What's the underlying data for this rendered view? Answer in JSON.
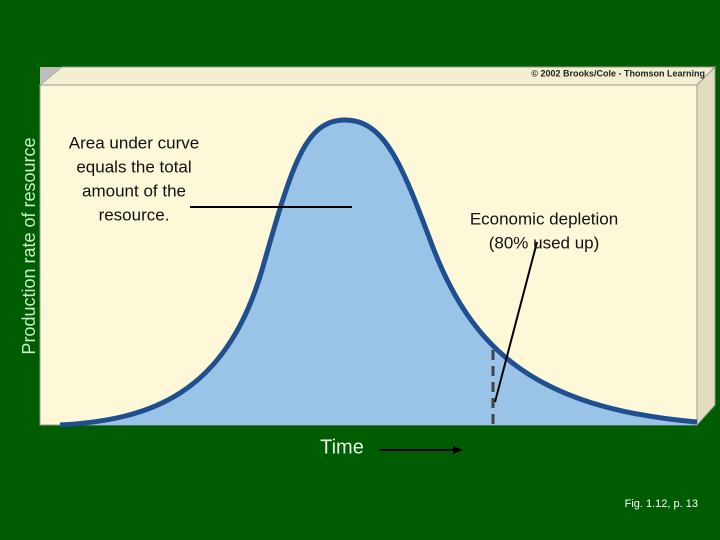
{
  "y_axis_label": "Production rate of resource",
  "x_axis_label": "Time",
  "copyright": "© 2002 Brooks/Cole - Thomson Learning",
  "annotations": [
    "Area under curve",
    "equals the total",
    "amount of the",
    "resource.",
    "Economic depletion",
    "(80% used up)"
  ],
  "caption": "Fig. 1.12, p. 13"
}
